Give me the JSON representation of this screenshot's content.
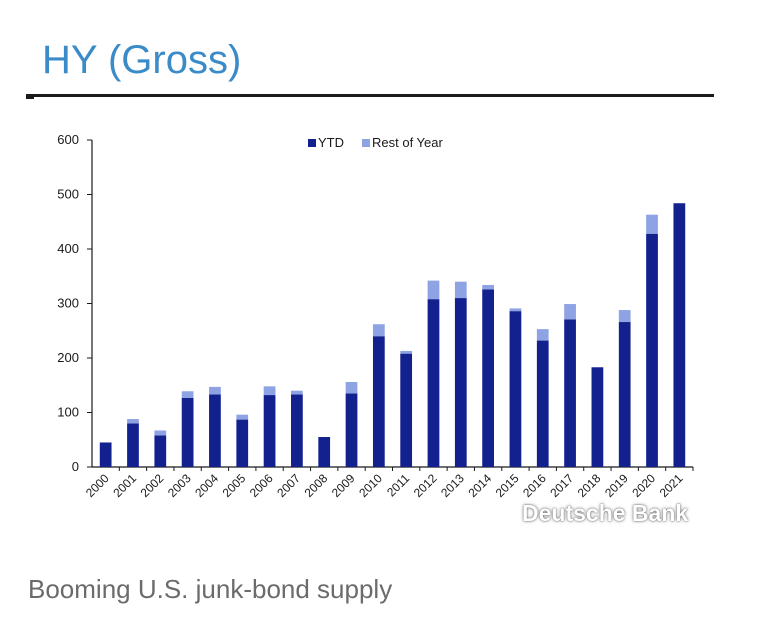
{
  "header": {
    "title": "HY (Gross)"
  },
  "caption": "Booming U.S. junk-bond supply",
  "watermark": "Deutsche Bank",
  "colors": {
    "ytd": "#13218f",
    "rest_of_year": "#8ea3e4",
    "title": "#3a8bc8"
  },
  "chart_data": {
    "type": "bar",
    "stacked": true,
    "title": "",
    "xlabel": "",
    "ylabel": "",
    "ylim": [
      0,
      600
    ],
    "yticks": [
      0,
      100,
      200,
      300,
      400,
      500,
      600
    ],
    "legend_position": "top-center",
    "grid": false,
    "categories": [
      "2000",
      "2001",
      "2002",
      "2003",
      "2004",
      "2005",
      "2006",
      "2007",
      "2008",
      "2009",
      "2010",
      "2011",
      "2012",
      "2013",
      "2014",
      "2015",
      "2016",
      "2017",
      "2018",
      "2019",
      "2020",
      "2021"
    ],
    "series": [
      {
        "name": "YTD",
        "values": [
          45,
          80,
          58,
          127,
          133,
          87,
          132,
          133,
          55,
          135,
          240,
          208,
          308,
          310,
          326,
          286,
          232,
          271,
          183,
          266,
          428,
          484
        ]
      },
      {
        "name": "Rest of Year",
        "values": [
          0,
          8,
          9,
          12,
          14,
          9,
          16,
          7,
          0,
          21,
          22,
          5,
          34,
          30,
          8,
          5,
          21,
          28,
          0,
          22,
          35,
          0
        ]
      }
    ]
  }
}
